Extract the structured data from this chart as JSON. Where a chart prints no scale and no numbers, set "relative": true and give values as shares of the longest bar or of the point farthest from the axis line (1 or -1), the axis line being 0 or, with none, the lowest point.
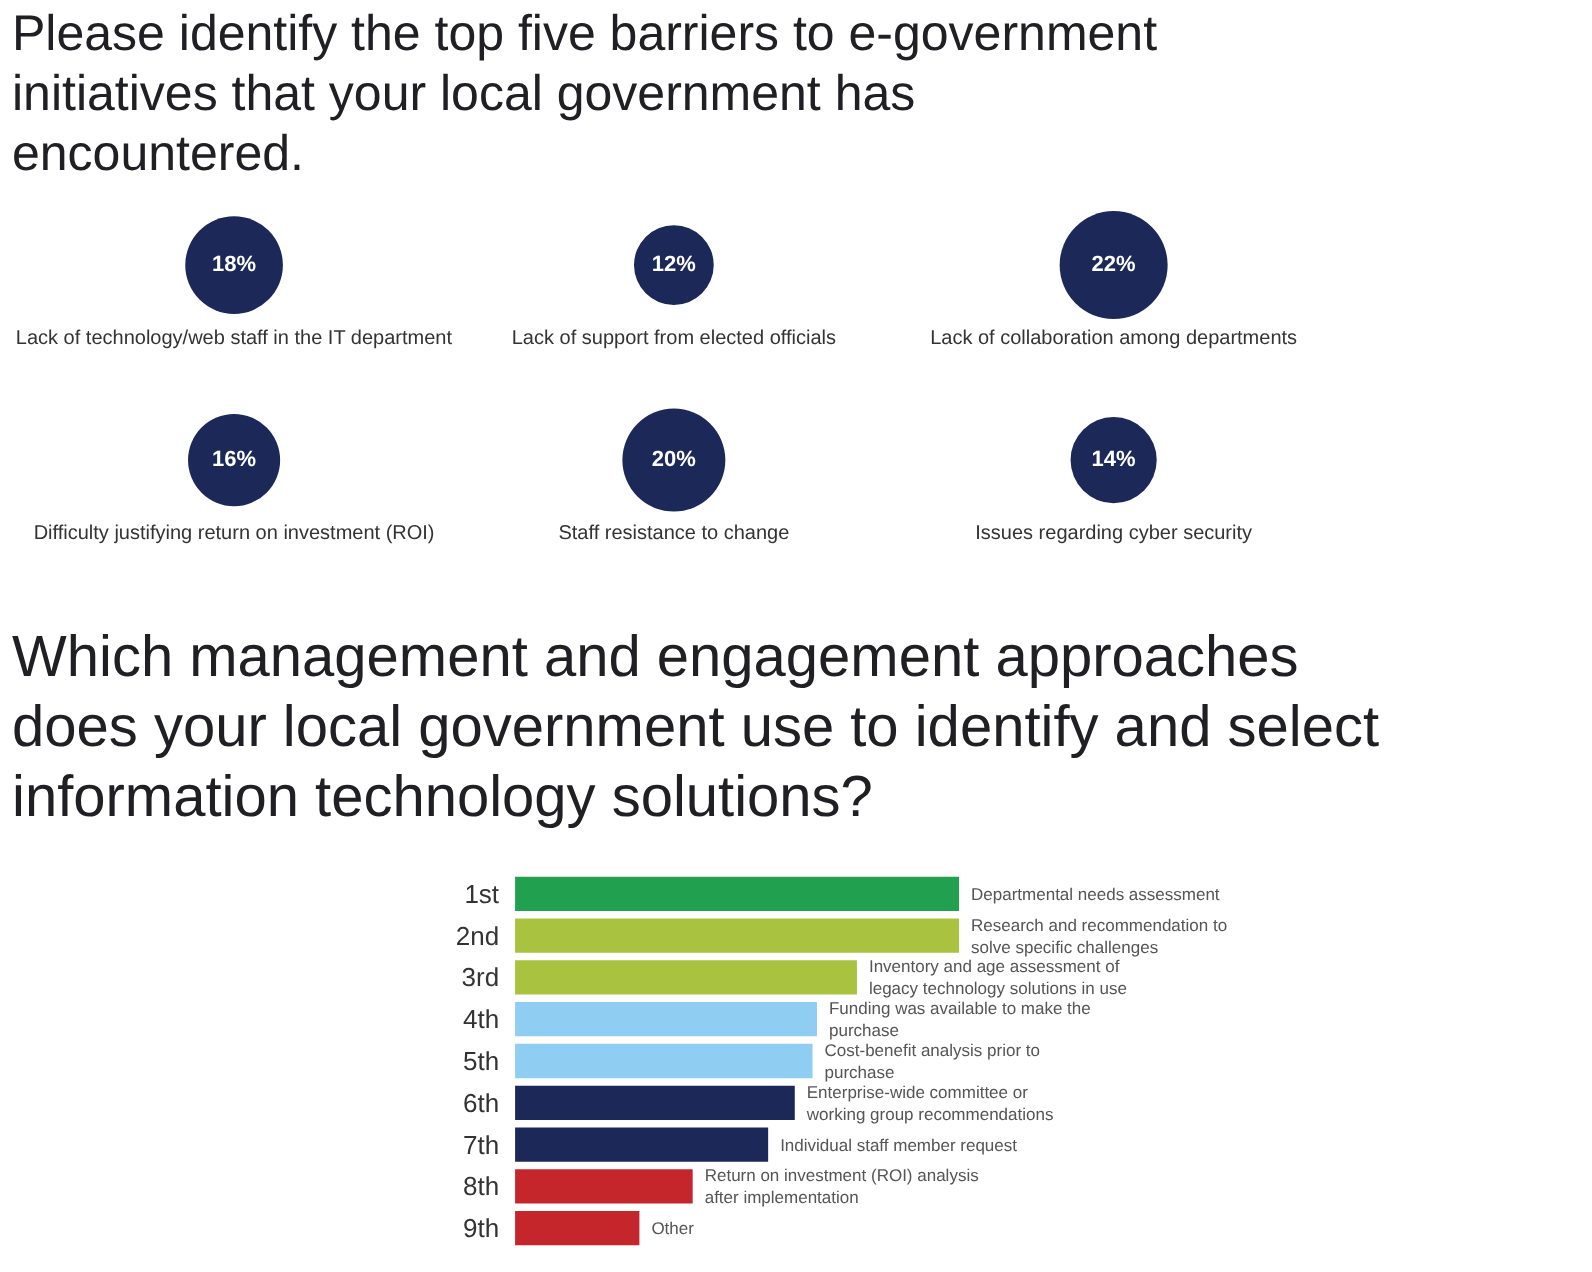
{
  "chart_data": [
    {
      "type": "other",
      "title": "Please identify the top five barriers to e-government initiatives that your local government has encountered.",
      "categories": [
        "Lack of technology/web staff in the IT department",
        "Lack of support from elected officials",
        "Lack of collaboration among departments",
        "Difficulty justifying return on investment (ROI)",
        "Staff resistance to change",
        "Issues regarding cyber security"
      ],
      "values": [
        18,
        12,
        22,
        16,
        20,
        14
      ],
      "value_labels": [
        "18%",
        "12%",
        "22%",
        "16%",
        "20%",
        "14%"
      ],
      "color": "#1c2858"
    },
    {
      "type": "bar",
      "orientation": "horizontal",
      "relative": true,
      "title": "Which management and engagement approaches does your local government use to identify and select information technology solutions?",
      "categories": [
        "1st",
        "2nd",
        "3rd",
        "4th",
        "5th",
        "6th",
        "7th",
        "8th",
        "9th"
      ],
      "values": [
        1,
        1,
        0.77,
        0.68,
        0.67,
        0.63,
        0.57,
        0.4,
        0.28
      ],
      "colors": [
        "#21a050",
        "#a9c23f",
        "#a9c23f",
        "#8fcdf2",
        "#8fcdf2",
        "#1c2858",
        "#1c2858",
        "#c4262b",
        "#c4262b"
      ],
      "annotations": [
        {
          "text": "Departmental needs assessment",
          "x": 1,
          "y": "1st"
        },
        {
          "text": "Research and recommendation to solve specific challenges",
          "x": 1,
          "y": "2nd"
        },
        {
          "text": "Inventory and age assessment of legacy technology solutions in use",
          "x": 0.77,
          "y": "3rd"
        },
        {
          "text": "Funding was available to make the purchase",
          "x": 0.68,
          "y": "4th"
        },
        {
          "text": "Cost-benefit analysis prior to purchase",
          "x": 0.67,
          "y": "5th"
        },
        {
          "text": "Enterprise-wide committee or working group recommendations",
          "x": 0.63,
          "y": "6th"
        },
        {
          "text": "Individual staff member request",
          "x": 0.57,
          "y": "7th"
        },
        {
          "text": "Return on investment (ROI) analysis after implementation",
          "x": 0.4,
          "y": "8th"
        },
        {
          "text": "Other",
          "x": 0.28,
          "y": "9th"
        }
      ]
    }
  ]
}
